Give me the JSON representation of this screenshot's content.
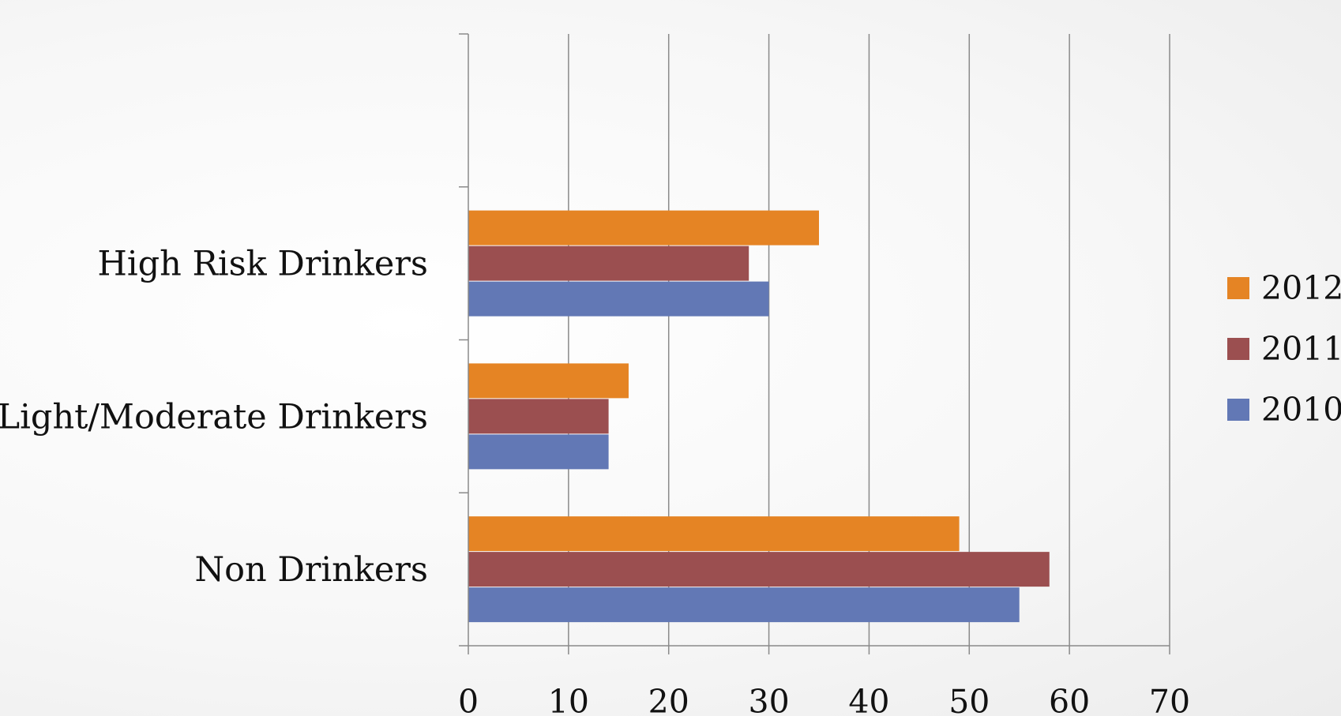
{
  "chart_data": {
    "type": "bar",
    "orientation": "horizontal",
    "categories": [
      "Non Drinkers",
      "Light/Moderate Drinkers",
      "High Risk Drinkers"
    ],
    "series": [
      {
        "name": "2010",
        "values": [
          55,
          14,
          30
        ],
        "color": "#6278b5"
      },
      {
        "name": "2011",
        "values": [
          58,
          14,
          28
        ],
        "color": "#9b4f50"
      },
      {
        "name": "2012",
        "values": [
          49,
          16,
          35
        ],
        "color": "#e58424"
      }
    ],
    "x_ticks": [
      "0",
      "10",
      "20",
      "30",
      "40",
      "50",
      "60",
      "70"
    ],
    "xlim": [
      0,
      70
    ],
    "grid": "vertical",
    "legend": {
      "position": "right",
      "order": [
        "2012",
        "2011",
        "2010"
      ]
    },
    "title": "",
    "xlabel": "",
    "ylabel": ""
  }
}
